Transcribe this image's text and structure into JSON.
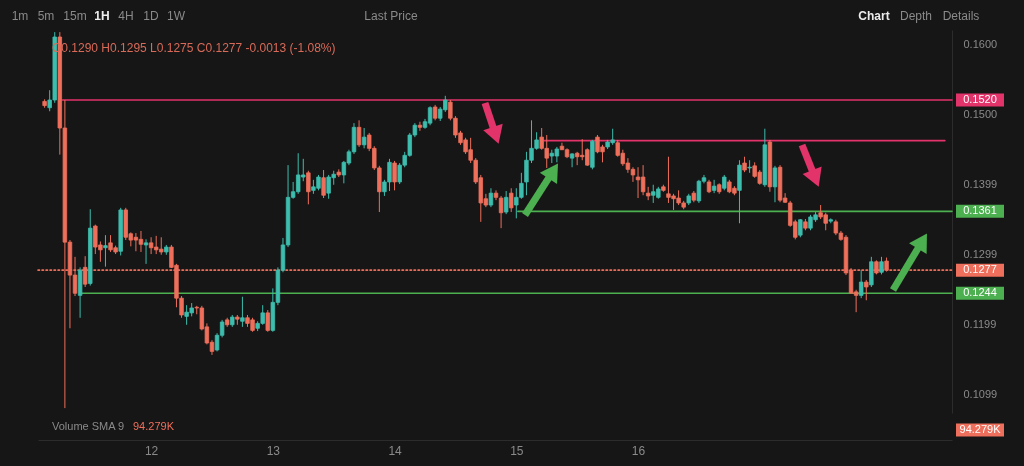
{
  "chart_data": {
    "type": "candlestick",
    "subtitle": "O0.1290 H0.1295 L0.1275 C0.1277 -0.0013 (-1.08%)",
    "annotations": [
      "1m",
      "5m",
      "15m",
      "1H",
      "4H",
      "1D",
      "1W",
      "Last Price",
      "Chart",
      "Depth",
      "Details",
      "Volume SMA 9",
      "94.279K"
    ],
    "xlim": [
      11.0708,
      18.5792
    ],
    "xticks": [
      12,
      13,
      14,
      15,
      16
    ],
    "ylim": [
      0.1073,
      0.162
    ],
    "yticks": [
      {
        "value": 0.16,
        "label": "0.1600"
      },
      {
        "value": 0.15,
        "label": "0.1500"
      },
      0.1399,
      0.1299,
      0.1199,
      0.1099
    ],
    "x": [
      11.125,
      11.1667,
      11.2083,
      11.25,
      11.2917,
      11.3333,
      11.375,
      11.4167,
      11.4583,
      11.5,
      11.5417,
      11.5833,
      11.625,
      11.6667,
      11.7083,
      11.75,
      11.7917,
      11.8333,
      11.875,
      11.9167,
      11.9583,
      12,
      12.0417,
      12.0833,
      12.125,
      12.1667,
      12.2083,
      12.25,
      12.2917,
      12.3333,
      12.375,
      12.4167,
      12.4583,
      12.5,
      12.5417,
      12.5833,
      12.625,
      12.6667,
      12.7083,
      12.75,
      12.7917,
      12.8333,
      12.875,
      12.9167,
      12.9583,
      13,
      13.0417,
      13.0833,
      13.125,
      13.1667,
      13.2083,
      13.25,
      13.2917,
      13.3333,
      13.375,
      13.4167,
      13.4583,
      13.5,
      13.5417,
      13.5833,
      13.625,
      13.6667,
      13.7083,
      13.75,
      13.7917,
      13.8333,
      13.875,
      13.9167,
      13.9583,
      14,
      14.0417,
      14.0833,
      14.125,
      14.1667,
      14.2083,
      14.25,
      14.2917,
      14.3333,
      14.375,
      14.4167,
      14.4583,
      14.5,
      14.5417,
      14.5833,
      14.625,
      14.6667,
      14.7083,
      14.75,
      14.7917,
      14.8333,
      14.875,
      14.9167,
      14.9583,
      15,
      15.0417,
      15.0833,
      15.125,
      15.1667,
      15.2083,
      15.25,
      15.2917,
      15.3333,
      15.375,
      15.4167,
      15.4583,
      15.5,
      15.5417,
      15.5833,
      15.625,
      15.6667,
      15.7083,
      15.75,
      15.7917,
      15.8333,
      15.875,
      15.9167,
      15.9583,
      16,
      16.0417,
      16.0833,
      16.125,
      16.1667,
      16.2083,
      16.25,
      16.2917,
      16.3333,
      16.375,
      16.4167,
      16.4583,
      16.5,
      16.5417,
      16.5833,
      16.625,
      16.6667,
      16.7083,
      16.75,
      16.7917,
      16.8333,
      16.875,
      16.9167,
      16.9583,
      17,
      17.0417,
      17.0833,
      17.125,
      17.1667,
      17.2083,
      17.25,
      17.2917,
      17.3333,
      17.375,
      17.4167,
      17.4583,
      17.5,
      17.5417,
      17.5833,
      17.625,
      17.6667,
      17.7083,
      17.75,
      17.7917,
      17.8333,
      17.875,
      17.9167,
      17.9583,
      18,
      18.0417
    ],
    "ohlc": [
      [
        0.1518,
        0.1521,
        0.1509,
        0.1512
      ],
      [
        0.1509,
        0.1534,
        0.1504,
        0.152
      ],
      [
        0.152,
        0.1617,
        0.1516,
        0.161
      ],
      [
        0.161,
        0.1617,
        0.1442,
        0.148
      ],
      [
        0.148,
        0.152,
        0.108,
        0.1317
      ],
      [
        0.1317,
        0.132,
        0.1194,
        0.127
      ],
      [
        0.127,
        0.1296,
        0.124,
        0.1244
      ],
      [
        0.1241,
        0.1281,
        0.1209,
        0.1277
      ],
      [
        0.1281,
        0.1297,
        0.1253,
        0.1257
      ],
      [
        0.1258,
        0.1364,
        0.1255,
        0.1337
      ],
      [
        0.134,
        0.1342,
        0.13,
        0.131
      ],
      [
        0.1313,
        0.1318,
        0.1289,
        0.1306
      ],
      [
        0.1309,
        0.1327,
        0.1282,
        0.1312
      ],
      [
        0.1316,
        0.1327,
        0.1303,
        0.1306
      ],
      [
        0.1309,
        0.1312,
        0.13,
        0.1303
      ],
      [
        0.1304,
        0.1366,
        0.1298,
        0.1363
      ],
      [
        0.1363,
        0.1366,
        0.132,
        0.1324
      ],
      [
        0.1329,
        0.1331,
        0.1311,
        0.132
      ],
      [
        0.1324,
        0.133,
        0.1304,
        0.132
      ],
      [
        0.1321,
        0.1333,
        0.1303,
        0.1314
      ],
      [
        0.1313,
        0.1321,
        0.1286,
        0.1316
      ],
      [
        0.1316,
        0.1324,
        0.13,
        0.1309
      ],
      [
        0.131,
        0.1326,
        0.13,
        0.1306
      ],
      [
        0.1307,
        0.1324,
        0.1299,
        0.1303
      ],
      [
        0.1303,
        0.1313,
        0.1299,
        0.131
      ],
      [
        0.131,
        0.1313,
        0.128,
        0.1281
      ],
      [
        0.1284,
        0.1286,
        0.1224,
        0.1237
      ],
      [
        0.1237,
        0.124,
        0.1209,
        0.1213
      ],
      [
        0.1211,
        0.1227,
        0.1199,
        0.1217
      ],
      [
        0.1216,
        0.123,
        0.1211,
        0.1223
      ],
      [
        0.1224,
        0.1226,
        0.1214,
        0.1223
      ],
      [
        0.1223,
        0.1226,
        0.1191,
        0.1193
      ],
      [
        0.1196,
        0.1201,
        0.1171,
        0.1173
      ],
      [
        0.1174,
        0.1177,
        0.1156,
        0.1161
      ],
      [
        0.1163,
        0.1187,
        0.1161,
        0.1184
      ],
      [
        0.1184,
        0.1206,
        0.1181,
        0.1203
      ],
      [
        0.1206,
        0.1209,
        0.1196,
        0.1199
      ],
      [
        0.1199,
        0.1213,
        0.1196,
        0.121
      ],
      [
        0.121,
        0.1213,
        0.1199,
        0.1207
      ],
      [
        0.1204,
        0.1239,
        0.1196,
        0.1209
      ],
      [
        0.1209,
        0.1213,
        0.1196,
        0.1201
      ],
      [
        0.1206,
        0.1209,
        0.1189,
        0.1191
      ],
      [
        0.1194,
        0.1204,
        0.119,
        0.1201
      ],
      [
        0.1201,
        0.1227,
        0.1199,
        0.1216
      ],
      [
        0.1216,
        0.122,
        0.1189,
        0.1191
      ],
      [
        0.1191,
        0.1251,
        0.1189,
        0.1231
      ],
      [
        0.1231,
        0.1281,
        0.1227,
        0.1277
      ],
      [
        0.1277,
        0.1323,
        0.1274,
        0.1313
      ],
      [
        0.1313,
        0.1427,
        0.131,
        0.1381
      ],
      [
        0.1381,
        0.1403,
        0.1379,
        0.1389
      ],
      [
        0.1389,
        0.1444,
        0.1386,
        0.1413
      ],
      [
        0.141,
        0.1436,
        0.1404,
        0.1413
      ],
      [
        0.1416,
        0.1419,
        0.1371,
        0.1389
      ],
      [
        0.1391,
        0.1406,
        0.1386,
        0.1396
      ],
      [
        0.1394,
        0.1413,
        0.1391,
        0.141
      ],
      [
        0.1409,
        0.142,
        0.138,
        0.1384
      ],
      [
        0.1387,
        0.1413,
        0.1379,
        0.141
      ],
      [
        0.1409,
        0.1419,
        0.1399,
        0.1414
      ],
      [
        0.1417,
        0.1421,
        0.141,
        0.1413
      ],
      [
        0.1413,
        0.1433,
        0.1401,
        0.1431
      ],
      [
        0.143,
        0.1449,
        0.1427,
        0.1446
      ],
      [
        0.1446,
        0.1487,
        0.1443,
        0.1481
      ],
      [
        0.1481,
        0.1491,
        0.1453,
        0.1456
      ],
      [
        0.1456,
        0.148,
        0.1451,
        0.1467
      ],
      [
        0.147,
        0.1473,
        0.1447,
        0.1451
      ],
      [
        0.1451,
        0.1454,
        0.142,
        0.1423
      ],
      [
        0.1423,
        0.1426,
        0.136,
        0.1389
      ],
      [
        0.1389,
        0.1406,
        0.1383,
        0.1403
      ],
      [
        0.1403,
        0.1436,
        0.139,
        0.1431
      ],
      [
        0.143,
        0.1433,
        0.1391,
        0.1403
      ],
      [
        0.1403,
        0.143,
        0.14,
        0.1427
      ],
      [
        0.1427,
        0.1446,
        0.1424,
        0.1441
      ],
      [
        0.1441,
        0.1473,
        0.1439,
        0.147
      ],
      [
        0.147,
        0.1487,
        0.1467,
        0.1484
      ],
      [
        0.1484,
        0.1489,
        0.1476,
        0.1481
      ],
      [
        0.1481,
        0.1493,
        0.1479,
        0.1489
      ],
      [
        0.1487,
        0.1511,
        0.1484,
        0.1509
      ],
      [
        0.151,
        0.1513,
        0.1491,
        0.1494
      ],
      [
        0.1494,
        0.151,
        0.149,
        0.1507
      ],
      [
        0.1506,
        0.1526,
        0.1503,
        0.152
      ],
      [
        0.1517,
        0.152,
        0.1491,
        0.1494
      ],
      [
        0.1494,
        0.1497,
        0.1466,
        0.147
      ],
      [
        0.1473,
        0.1476,
        0.1456,
        0.1459
      ],
      [
        0.1463,
        0.1466,
        0.1443,
        0.1446
      ],
      [
        0.1449,
        0.1466,
        0.143,
        0.1434
      ],
      [
        0.1434,
        0.1437,
        0.14,
        0.1403
      ],
      [
        0.1409,
        0.1413,
        0.1346,
        0.1373
      ],
      [
        0.1379,
        0.1386,
        0.1367,
        0.137
      ],
      [
        0.137,
        0.1394,
        0.1367,
        0.1387
      ],
      [
        0.1387,
        0.1391,
        0.1377,
        0.1381
      ],
      [
        0.138,
        0.1383,
        0.1337,
        0.1359
      ],
      [
        0.136,
        0.139,
        0.1357,
        0.1381
      ],
      [
        0.1387,
        0.1394,
        0.136,
        0.1366
      ],
      [
        0.137,
        0.1394,
        0.1351,
        0.1381
      ],
      [
        0.1381,
        0.1416,
        0.1379,
        0.1401
      ],
      [
        0.1403,
        0.1446,
        0.1384,
        0.1434
      ],
      [
        0.1434,
        0.1491,
        0.143,
        0.1451
      ],
      [
        0.1451,
        0.1474,
        0.1449,
        0.1463
      ],
      [
        0.1467,
        0.148,
        0.1449,
        0.1451
      ],
      [
        0.1451,
        0.147,
        0.1423,
        0.1437
      ],
      [
        0.144,
        0.1449,
        0.143,
        0.1444
      ],
      [
        0.144,
        0.1453,
        0.1431,
        0.145
      ],
      [
        0.1454,
        0.1459,
        0.1449,
        0.1449
      ],
      [
        0.1449,
        0.1451,
        0.1437,
        0.1439
      ],
      [
        0.1437,
        0.1444,
        0.1424,
        0.1443
      ],
      [
        0.1444,
        0.1446,
        0.1427,
        0.1439
      ],
      [
        0.1441,
        0.1464,
        0.1434,
        0.1439
      ],
      [
        0.1449,
        0.1451,
        0.1426,
        0.1427
      ],
      [
        0.1424,
        0.1463,
        0.1421,
        0.1461
      ],
      [
        0.1467,
        0.147,
        0.1444,
        0.1446
      ],
      [
        0.1453,
        0.1456,
        0.1431,
        0.1446
      ],
      [
        0.1453,
        0.1463,
        0.145,
        0.146
      ],
      [
        0.1459,
        0.1479,
        0.1456,
        0.1463
      ],
      [
        0.1459,
        0.1463,
        0.1439,
        0.1441
      ],
      [
        0.1444,
        0.1449,
        0.1426,
        0.1429
      ],
      [
        0.143,
        0.1437,
        0.1416,
        0.1421
      ],
      [
        0.1421,
        0.1424,
        0.1403,
        0.1413
      ],
      [
        0.141,
        0.1424,
        0.138,
        0.1406
      ],
      [
        0.141,
        0.1427,
        0.1384,
        0.1389
      ],
      [
        0.1387,
        0.1396,
        0.1377,
        0.1383
      ],
      [
        0.1384,
        0.1399,
        0.1373,
        0.1389
      ],
      [
        0.1381,
        0.1396,
        0.1379,
        0.1393
      ],
      [
        0.1396,
        0.1399,
        0.1389,
        0.1391
      ],
      [
        0.1386,
        0.1439,
        0.1373,
        0.1381
      ],
      [
        0.1383,
        0.1386,
        0.1363,
        0.1379
      ],
      [
        0.138,
        0.1391,
        0.137,
        0.1373
      ],
      [
        0.1373,
        0.1376,
        0.1364,
        0.1367
      ],
      [
        0.1373,
        0.1386,
        0.137,
        0.1383
      ],
      [
        0.1387,
        0.139,
        0.1374,
        0.1377
      ],
      [
        0.1376,
        0.1406,
        0.1373,
        0.1404
      ],
      [
        0.1404,
        0.1413,
        0.1401,
        0.1409
      ],
      [
        0.1403,
        0.1406,
        0.1387,
        0.1389
      ],
      [
        0.1391,
        0.1406,
        0.1387,
        0.1397
      ],
      [
        0.1399,
        0.1401,
        0.1386,
        0.1389
      ],
      [
        0.1394,
        0.1413,
        0.1391,
        0.141
      ],
      [
        0.1403,
        0.1406,
        0.1387,
        0.1389
      ],
      [
        0.1394,
        0.1397,
        0.1384,
        0.1387
      ],
      [
        0.1391,
        0.1434,
        0.1344,
        0.1427
      ],
      [
        0.143,
        0.1439,
        0.1417,
        0.142
      ],
      [
        0.1423,
        0.1434,
        0.1416,
        0.1424
      ],
      [
        0.1426,
        0.1431,
        0.1409,
        0.1411
      ],
      [
        0.1417,
        0.142,
        0.1399,
        0.1401
      ],
      [
        0.1399,
        0.1479,
        0.1396,
        0.1456
      ],
      [
        0.146,
        0.1463,
        0.1389,
        0.1396
      ],
      [
        0.1396,
        0.1426,
        0.1374,
        0.1423
      ],
      [
        0.1424,
        0.1427,
        0.1374,
        0.1377
      ],
      [
        0.138,
        0.1387,
        0.1373,
        0.1374
      ],
      [
        0.1373,
        0.1376,
        0.1339,
        0.1341
      ],
      [
        0.1346,
        0.1349,
        0.1321,
        0.1324
      ],
      [
        0.1327,
        0.135,
        0.1324,
        0.1349
      ],
      [
        0.1346,
        0.135,
        0.1334,
        0.1337
      ],
      [
        0.1337,
        0.1356,
        0.1334,
        0.1353
      ],
      [
        0.1349,
        0.136,
        0.1346,
        0.1356
      ],
      [
        0.1359,
        0.137,
        0.135,
        0.1353
      ],
      [
        0.1356,
        0.1359,
        0.1334,
        0.1344
      ],
      [
        0.1347,
        0.1351,
        0.1344,
        0.1349
      ],
      [
        0.1346,
        0.1349,
        0.1327,
        0.133
      ],
      [
        0.133,
        0.1333,
        0.1319,
        0.1321
      ],
      [
        0.1324,
        0.1327,
        0.127,
        0.1273
      ],
      [
        0.1277,
        0.128,
        0.1244,
        0.1244
      ],
      [
        0.1246,
        0.1249,
        0.1217,
        0.1241
      ],
      [
        0.1241,
        0.1277,
        0.1237,
        0.126
      ],
      [
        0.126,
        0.1263,
        0.1234,
        0.1253
      ],
      [
        0.1256,
        0.1296,
        0.1253,
        0.1289
      ],
      [
        0.1289,
        0.1291,
        0.1271,
        0.1273
      ],
      [
        0.1274,
        0.1296,
        0.1271,
        0.1289
      ],
      [
        0.129,
        0.1295,
        0.1275,
        0.1277
      ]
    ],
    "colors": [
      "#ee6f5b",
      "#3dbdad",
      "#3dbdad",
      "#ee6f5b",
      "#ee6f5b",
      "#ee6f5b",
      "#ee6f5b",
      "#3dbdad",
      "#ee6f5b",
      "#3dbdad",
      "#ee6f5b",
      "#ee6f5b",
      "#3dbdad",
      "#ee6f5b",
      "#ee6f5b",
      "#3dbdad",
      "#ee6f5b",
      "#ee6f5b",
      "#ee6f5b",
      "#ee6f5b",
      "#3dbdad",
      "#ee6f5b",
      "#ee6f5b",
      "#ee6f5b",
      "#3dbdad",
      "#ee6f5b",
      "#ee6f5b",
      "#ee6f5b",
      "#3dbdad",
      "#3dbdad",
      "#ee6f5b",
      "#ee6f5b",
      "#ee6f5b",
      "#ee6f5b",
      "#3dbdad",
      "#3dbdad",
      "#ee6f5b",
      "#3dbdad",
      "#ee6f5b",
      "#3dbdad",
      "#ee6f5b",
      "#ee6f5b",
      "#3dbdad",
      "#3dbdad",
      "#ee6f5b",
      "#3dbdad",
      "#3dbdad",
      "#3dbdad",
      "#3dbdad",
      "#3dbdad",
      "#3dbdad",
      "#3dbdad",
      "#ee6f5b",
      "#3dbdad",
      "#3dbdad",
      "#ee6f5b",
      "#3dbdad",
      "#3dbdad",
      "#ee6f5b",
      "#3dbdad",
      "#3dbdad",
      "#3dbdad",
      "#ee6f5b",
      "#3dbdad",
      "#ee6f5b",
      "#ee6f5b",
      "#ee6f5b",
      "#3dbdad",
      "#3dbdad",
      "#ee6f5b",
      "#3dbdad",
      "#3dbdad",
      "#3dbdad",
      "#3dbdad",
      "#ee6f5b",
      "#3dbdad",
      "#3dbdad",
      "#ee6f5b",
      "#3dbdad",
      "#3dbdad",
      "#ee6f5b",
      "#ee6f5b",
      "#ee6f5b",
      "#ee6f5b",
      "#ee6f5b",
      "#ee6f5b",
      "#ee6f5b",
      "#ee6f5b",
      "#3dbdad",
      "#ee6f5b",
      "#ee6f5b",
      "#3dbdad",
      "#ee6f5b",
      "#3dbdad",
      "#3dbdad",
      "#3dbdad",
      "#3dbdad",
      "#3dbdad",
      "#ee6f5b",
      "#ee6f5b",
      "#3dbdad",
      "#3dbdad",
      "#ee6f5b",
      "#ee6f5b",
      "#3dbdad",
      "#ee6f5b",
      "#ee6f5b",
      "#ee6f5b",
      "#3dbdad",
      "#ee6f5b",
      "#ee6f5b",
      "#3dbdad",
      "#3dbdad",
      "#ee6f5b",
      "#ee6f5b",
      "#ee6f5b",
      "#ee6f5b",
      "#ee6f5b",
      "#ee6f5b",
      "#ee6f5b",
      "#3dbdad",
      "#3dbdad",
      "#ee6f5b",
      "#ee6f5b",
      "#ee6f5b",
      "#ee6f5b",
      "#ee6f5b",
      "#3dbdad",
      "#ee6f5b",
      "#3dbdad",
      "#3dbdad",
      "#ee6f5b",
      "#3dbdad",
      "#ee6f5b",
      "#3dbdad",
      "#ee6f5b",
      "#ee6f5b",
      "#3dbdad",
      "#ee6f5b",
      "#3dbdad",
      "#ee6f5b",
      "#ee6f5b",
      "#3dbdad",
      "#ee6f5b",
      "#3dbdad",
      "#ee6f5b",
      "#ee6f5b",
      "#ee6f5b",
      "#ee6f5b",
      "#3dbdad",
      "#ee6f5b",
      "#3dbdad",
      "#3dbdad",
      "#ee6f5b",
      "#ee6f5b",
      "#3dbdad",
      "#ee6f5b",
      "#ee6f5b",
      "#ee6f5b",
      "#ee6f5b",
      "#ee6f5b",
      "#3dbdad",
      "#ee6f5b",
      "#3dbdad",
      "#ee6f5b",
      "#3dbdad",
      "#ee6f5b"
    ],
    "series": [
      {
        "type": "line",
        "name": "0.1520",
        "color": "#e2336b",
        "x": [
          11.27,
          18.5792
        ],
        "values": [
          0.152,
          0.152
        ]
      },
      {
        "type": "line",
        "color": "#e2336b",
        "x": [
          15.2292,
          18.5208
        ],
        "values": [
          0.1462,
          0.1462
        ]
      },
      {
        "type": "line",
        "name": "0.1361",
        "color": "#4caf50",
        "x": [
          15.0125,
          18.5792
        ],
        "values": [
          0.1361,
          0.1361
        ]
      },
      {
        "type": "line",
        "name": "0.1277",
        "color": "#ee6f5b",
        "line_style": "dotted",
        "x": [
          11.0708,
          18.5792
        ],
        "values": [
          0.1277,
          0.1277
        ]
      },
      {
        "type": "line",
        "name": "0.1244",
        "color": "#4caf50",
        "x": [
          11.4167,
          18.5792
        ],
        "values": [
          0.1244,
          0.1244
        ]
      }
    ]
  }
}
